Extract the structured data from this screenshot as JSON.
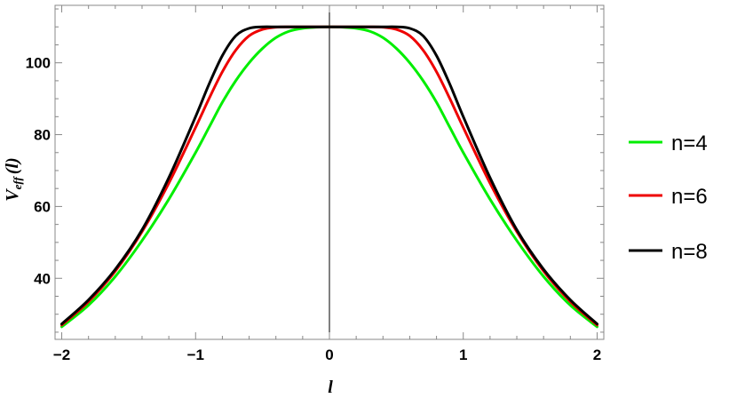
{
  "chart_data": {
    "type": "line",
    "title": "",
    "xlabel": "l",
    "ylabel_main": "V",
    "ylabel_sub": "eff",
    "ylabel_arg": "(l)",
    "xlim": [
      -2.05,
      2.05
    ],
    "ylim": [
      23,
      116
    ],
    "x_ticks": [
      -2,
      -1,
      0,
      1,
      2
    ],
    "x_tick_labels": [
      "−2",
      "−1",
      "0",
      "1",
      "2"
    ],
    "y_ticks": [
      40,
      60,
      80,
      100
    ],
    "y_tick_labels": [
      "40",
      "60",
      "80",
      "100"
    ],
    "grid": false,
    "legend_position": "right",
    "x": [
      -2.0,
      -1.8,
      -1.6,
      -1.4,
      -1.2,
      -1.0,
      -0.9,
      -0.8,
      -0.7,
      -0.6,
      -0.5,
      -0.4,
      -0.3,
      -0.2,
      -0.1,
      0.0,
      0.1,
      0.2,
      0.3,
      0.4,
      0.5,
      0.6,
      0.7,
      0.8,
      0.9,
      1.0,
      1.2,
      1.4,
      1.6,
      1.8,
      2.0
    ],
    "series": [
      {
        "name": "n=4",
        "color": "#00ee00",
        "values": [
          26.5,
          32.5,
          40.5,
          50.5,
          62.0,
          75.0,
          82.0,
          89.0,
          95.0,
          100.0,
          104.0,
          107.0,
          108.8,
          109.6,
          109.9,
          110.0,
          109.9,
          109.6,
          108.8,
          107.0,
          104.0,
          100.0,
          95.0,
          89.0,
          82.0,
          75.0,
          62.0,
          50.5,
          40.5,
          32.5,
          26.5
        ]
      },
      {
        "name": "n=6",
        "color": "#ee0000",
        "values": [
          27.0,
          33.5,
          42.0,
          53.0,
          66.5,
          82.0,
          90.0,
          97.5,
          103.5,
          107.5,
          109.3,
          109.9,
          110.0,
          110.0,
          110.0,
          110.0,
          110.0,
          110.0,
          110.0,
          109.9,
          109.3,
          107.5,
          103.5,
          97.5,
          90.0,
          82.0,
          66.5,
          53.0,
          42.0,
          33.5,
          27.0
        ]
      },
      {
        "name": "n=8",
        "color": "#000000",
        "values": [
          27.3,
          34.0,
          42.5,
          53.5,
          68.0,
          85.0,
          94.0,
          102.0,
          107.5,
          109.6,
          110.0,
          110.0,
          110.0,
          110.0,
          110.0,
          110.0,
          110.0,
          110.0,
          110.0,
          110.0,
          110.0,
          109.6,
          107.5,
          102.0,
          94.0,
          85.0,
          68.0,
          53.5,
          42.5,
          34.0,
          27.3
        ]
      }
    ]
  }
}
